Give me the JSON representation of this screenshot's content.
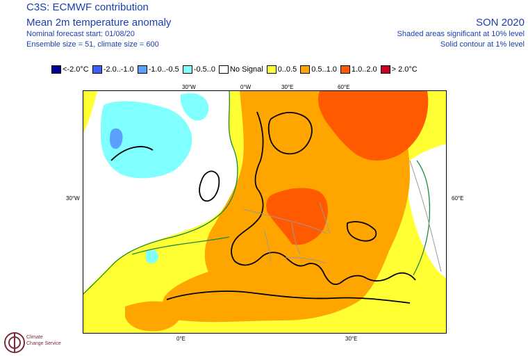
{
  "header": {
    "title": "C3S: ECMWF contribution",
    "subtitle": "Mean 2m temperature anomaly",
    "forecast_start": "Nominal forecast start: 01/08/20",
    "ensemble": "Ensemble size = 51, climate size = 600",
    "season": "SON 2020",
    "significance_shaded": "Shaded areas significant at 10% level",
    "significance_contour": "Solid contour at 1% level"
  },
  "legend": {
    "items": [
      {
        "label": "<-2.0°C",
        "color": "#000099"
      },
      {
        "label": "-2.0..-1.0",
        "color": "#3b60ff"
      },
      {
        "label": "-1.0..-0.5",
        "color": "#5aa0ff"
      },
      {
        "label": "-0.5..0",
        "color": "#80ffff"
      },
      {
        "label": "No Signal",
        "color": "#ffffff"
      },
      {
        "label": "0..0.5",
        "color": "#ffff33"
      },
      {
        "label": "0.5..1.0",
        "color": "#ffa500"
      },
      {
        "label": "1.0..2.0",
        "color": "#ff5a00"
      },
      {
        "label": "> 2.0°C",
        "color": "#cc0020"
      }
    ]
  },
  "map": {
    "top_labels": [
      "30°W",
      "0°W",
      "30°E",
      "60°E"
    ],
    "bottom_labels": [
      "0°E",
      "30°E"
    ],
    "left_label": "30°W",
    "right_label": "60°E"
  },
  "logo": {
    "line1": "Climate",
    "line2": "Change Service"
  }
}
